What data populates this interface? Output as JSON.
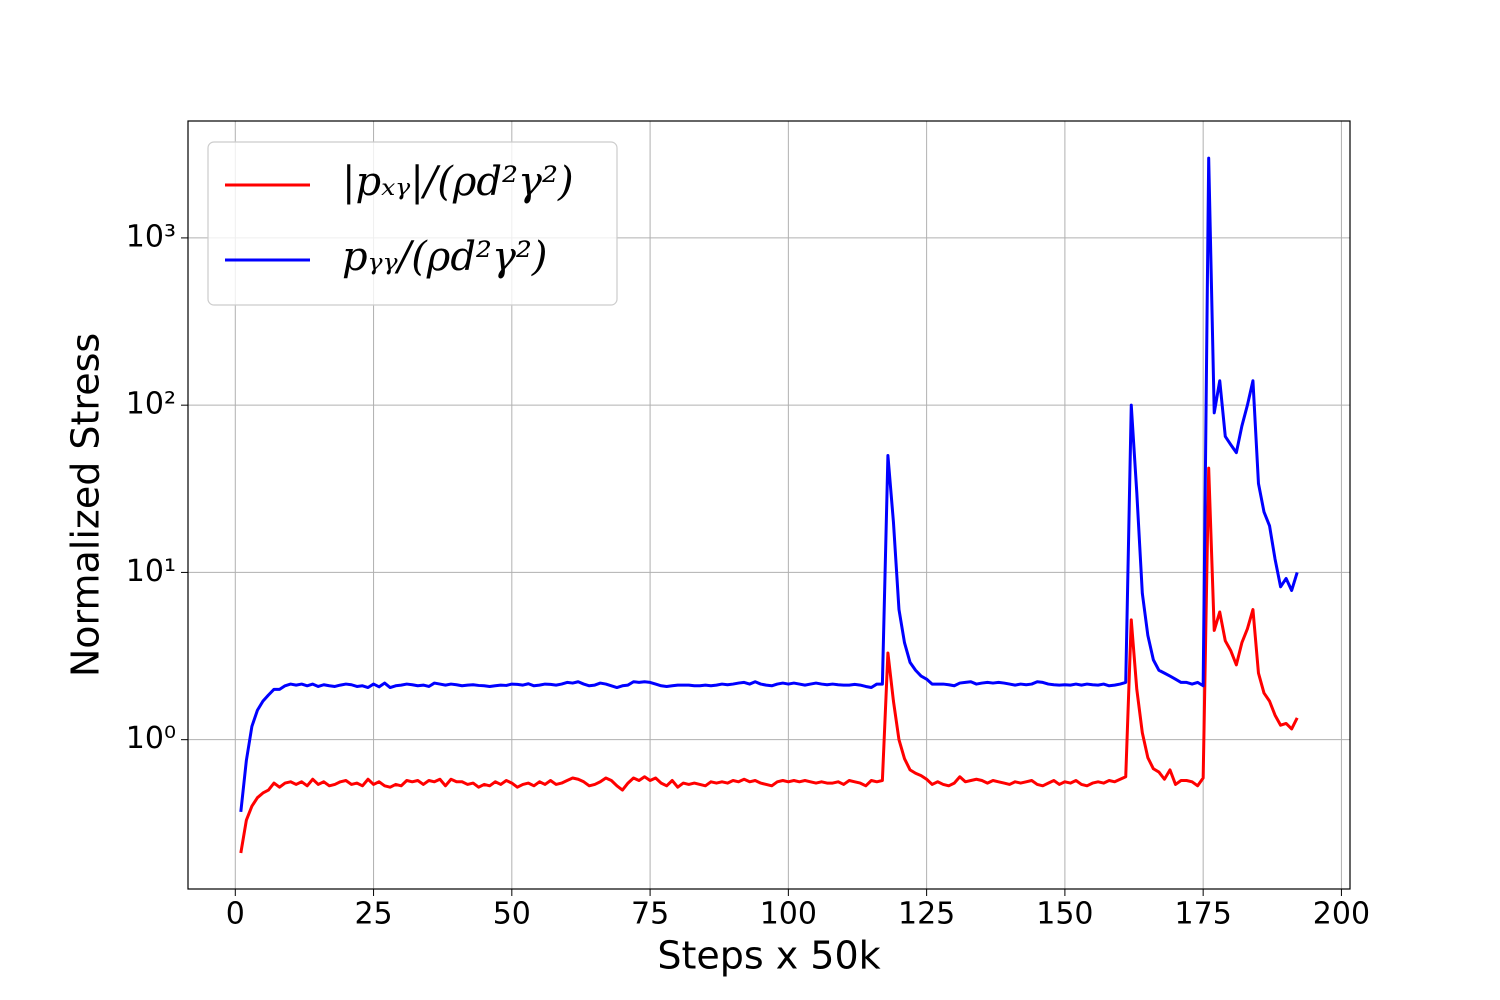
{
  "chart_data": {
    "type": "line",
    "xlabel": "Steps x 50k",
    "ylabel": "Normalized Stress",
    "log_y": true,
    "grid": true,
    "legend": "upper left",
    "xlim": [
      -8.55,
      201.55
    ],
    "ylim": [
      0.128,
      5000
    ],
    "xticks": [
      0,
      25,
      50,
      75,
      100,
      125,
      150,
      175,
      200
    ],
    "yticks": [
      {
        "value": 1,
        "label": "10⁰"
      },
      {
        "value": 10,
        "label": "10¹"
      },
      {
        "value": 100,
        "label": "10²"
      },
      {
        "value": 1000,
        "label": "10³"
      }
    ],
    "x": [
      1,
      2,
      3,
      4,
      5,
      6,
      7,
      8,
      9,
      10,
      11,
      12,
      13,
      14,
      15,
      16,
      17,
      18,
      19,
      20,
      21,
      22,
      23,
      24,
      25,
      26,
      27,
      28,
      29,
      30,
      31,
      32,
      33,
      34,
      35,
      36,
      37,
      38,
      39,
      40,
      41,
      42,
      43,
      44,
      45,
      46,
      47,
      48,
      49,
      50,
      51,
      52,
      53,
      54,
      55,
      56,
      57,
      58,
      59,
      60,
      61,
      62,
      63,
      64,
      65,
      66,
      67,
      68,
      69,
      70,
      71,
      72,
      73,
      74,
      75,
      76,
      77,
      78,
      79,
      80,
      81,
      82,
      83,
      84,
      85,
      86,
      87,
      88,
      89,
      90,
      91,
      92,
      93,
      94,
      95,
      96,
      97,
      98,
      99,
      100,
      101,
      102,
      103,
      104,
      105,
      106,
      107,
      108,
      109,
      110,
      111,
      112,
      113,
      114,
      115,
      116,
      117,
      118,
      119,
      120,
      121,
      122,
      123,
      124,
      125,
      126,
      127,
      128,
      129,
      130,
      131,
      132,
      133,
      134,
      135,
      136,
      137,
      138,
      139,
      140,
      141,
      142,
      143,
      144,
      145,
      146,
      147,
      148,
      149,
      150,
      151,
      152,
      153,
      154,
      155,
      156,
      157,
      158,
      159,
      160,
      161,
      162,
      163,
      164,
      165,
      166,
      167,
      168,
      169,
      170,
      171,
      172,
      173,
      174,
      175,
      176,
      177,
      178,
      179,
      180,
      181,
      182,
      183,
      184,
      185,
      186,
      187,
      188,
      189,
      190,
      191,
      192
    ],
    "series": [
      {
        "name": "|pₓᵧ|/(ρd²γ²)",
        "color": "#ff0000",
        "values": [
          0.21,
          0.33,
          0.4,
          0.45,
          0.48,
          0.5,
          0.55,
          0.52,
          0.55,
          0.56,
          0.54,
          0.56,
          0.53,
          0.58,
          0.54,
          0.56,
          0.53,
          0.54,
          0.56,
          0.57,
          0.54,
          0.55,
          0.53,
          0.58,
          0.54,
          0.56,
          0.53,
          0.52,
          0.54,
          0.53,
          0.57,
          0.56,
          0.57,
          0.54,
          0.57,
          0.56,
          0.58,
          0.53,
          0.58,
          0.56,
          0.56,
          0.54,
          0.55,
          0.52,
          0.54,
          0.53,
          0.56,
          0.54,
          0.57,
          0.55,
          0.52,
          0.54,
          0.55,
          0.53,
          0.56,
          0.54,
          0.57,
          0.54,
          0.55,
          0.57,
          0.59,
          0.58,
          0.56,
          0.53,
          0.54,
          0.56,
          0.59,
          0.57,
          0.53,
          0.5,
          0.55,
          0.59,
          0.57,
          0.6,
          0.57,
          0.59,
          0.55,
          0.53,
          0.57,
          0.52,
          0.55,
          0.54,
          0.55,
          0.54,
          0.53,
          0.56,
          0.55,
          0.56,
          0.55,
          0.57,
          0.56,
          0.58,
          0.56,
          0.57,
          0.55,
          0.54,
          0.53,
          0.56,
          0.57,
          0.56,
          0.57,
          0.56,
          0.57,
          0.56,
          0.55,
          0.56,
          0.55,
          0.55,
          0.56,
          0.54,
          0.57,
          0.56,
          0.55,
          0.53,
          0.57,
          0.56,
          0.57,
          3.3,
          1.7,
          1.0,
          0.77,
          0.66,
          0.63,
          0.61,
          0.58,
          0.54,
          0.56,
          0.54,
          0.53,
          0.55,
          0.6,
          0.56,
          0.57,
          0.58,
          0.57,
          0.55,
          0.57,
          0.56,
          0.55,
          0.54,
          0.56,
          0.55,
          0.56,
          0.57,
          0.54,
          0.53,
          0.55,
          0.57,
          0.54,
          0.56,
          0.55,
          0.57,
          0.54,
          0.53,
          0.55,
          0.56,
          0.55,
          0.57,
          0.56,
          0.58,
          0.6,
          5.2,
          2.0,
          1.1,
          0.78,
          0.67,
          0.64,
          0.58,
          0.66,
          0.54,
          0.57,
          0.57,
          0.56,
          0.53,
          0.59,
          42,
          4.5,
          5.8,
          3.9,
          3.4,
          2.8,
          3.8,
          4.6,
          6.0,
          2.5,
          1.9,
          1.7,
          1.4,
          1.22,
          1.25,
          1.16,
          1.35
        ]
      },
      {
        "name": "pᵧᵧ/(ρd²γ²)",
        "color": "#0000ff",
        "values": [
          0.37,
          0.75,
          1.2,
          1.5,
          1.7,
          1.85,
          2.0,
          2.0,
          2.1,
          2.15,
          2.12,
          2.15,
          2.1,
          2.15,
          2.08,
          2.13,
          2.1,
          2.08,
          2.12,
          2.15,
          2.13,
          2.08,
          2.1,
          2.05,
          2.15,
          2.07,
          2.18,
          2.05,
          2.1,
          2.12,
          2.15,
          2.13,
          2.1,
          2.12,
          2.08,
          2.18,
          2.15,
          2.12,
          2.15,
          2.13,
          2.1,
          2.12,
          2.13,
          2.11,
          2.1,
          2.08,
          2.1,
          2.12,
          2.11,
          2.15,
          2.14,
          2.12,
          2.16,
          2.1,
          2.12,
          2.15,
          2.14,
          2.12,
          2.15,
          2.2,
          2.18,
          2.22,
          2.15,
          2.1,
          2.12,
          2.18,
          2.15,
          2.1,
          2.05,
          2.1,
          2.12,
          2.22,
          2.2,
          2.22,
          2.2,
          2.15,
          2.1,
          2.08,
          2.1,
          2.12,
          2.12,
          2.12,
          2.1,
          2.1,
          2.12,
          2.1,
          2.12,
          2.15,
          2.13,
          2.15,
          2.18,
          2.2,
          2.15,
          2.22,
          2.15,
          2.12,
          2.1,
          2.15,
          2.18,
          2.15,
          2.18,
          2.15,
          2.12,
          2.15,
          2.18,
          2.15,
          2.13,
          2.15,
          2.13,
          2.12,
          2.12,
          2.14,
          2.12,
          2.08,
          2.05,
          2.15,
          2.15,
          50,
          20,
          6,
          3.8,
          2.9,
          2.6,
          2.4,
          2.3,
          2.15,
          2.15,
          2.15,
          2.13,
          2.1,
          2.18,
          2.2,
          2.22,
          2.15,
          2.18,
          2.2,
          2.18,
          2.2,
          2.18,
          2.15,
          2.12,
          2.15,
          2.13,
          2.15,
          2.22,
          2.2,
          2.15,
          2.13,
          2.12,
          2.13,
          2.12,
          2.15,
          2.12,
          2.15,
          2.13,
          2.12,
          2.15,
          2.1,
          2.12,
          2.15,
          2.2,
          100,
          30,
          7.5,
          4.2,
          3.0,
          2.6,
          2.5,
          2.4,
          2.3,
          2.2,
          2.2,
          2.15,
          2.2,
          2.1,
          3000,
          90,
          140,
          65,
          58,
          52,
          75,
          100,
          140,
          34,
          23,
          19,
          12,
          8.2,
          9.2,
          7.8,
          10
        ]
      }
    ]
  }
}
